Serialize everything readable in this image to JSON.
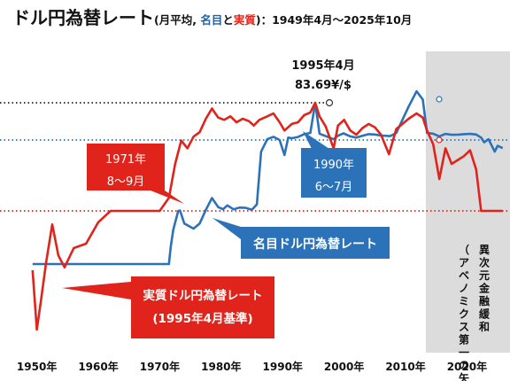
{
  "title": {
    "main": "ドル円為替レート",
    "open_paren": "(月平均, ",
    "nominal_word": "名目",
    "and_word": "と",
    "real_word": "実質",
    "period": ")：1949年4月～2025年10月"
  },
  "chart_data": {
    "type": "line",
    "x_range": [
      1944,
      2027
    ],
    "x_tick_labels": [
      "1950年",
      "1960年",
      "1970年",
      "1980年",
      "1990年",
      "2000年",
      "2010年",
      "2020年"
    ],
    "x_ticks": [
      1950,
      1960,
      1970,
      1980,
      1990,
      2000,
      2010,
      2020
    ],
    "y_inverted": true,
    "grid": false,
    "series": [
      {
        "name": "名目ドル円為替レート",
        "color": "#2b72b8",
        "points": [
          [
            1949.3,
            360
          ],
          [
            1952,
            360
          ],
          [
            1955,
            360
          ],
          [
            1958,
            360
          ],
          [
            1961,
            360
          ],
          [
            1964,
            360
          ],
          [
            1967,
            360
          ],
          [
            1971.5,
            360
          ],
          [
            1971.8,
            330
          ],
          [
            1972.2,
            302
          ],
          [
            1973.0,
            265
          ],
          [
            1973.3,
            262
          ],
          [
            1974.0,
            290
          ],
          [
            1975.5,
            300
          ],
          [
            1976.5,
            290
          ],
          [
            1977.5,
            255
          ],
          [
            1978.5,
            195
          ],
          [
            1979.5,
            230
          ],
          [
            1980.3,
            250
          ],
          [
            1981.0,
            215
          ],
          [
            1982.0,
            250
          ],
          [
            1983,
            235
          ],
          [
            1984,
            237
          ],
          [
            1985.0,
            255
          ],
          [
            1985.8,
            205
          ],
          [
            1986.5,
            155
          ],
          [
            1987.5,
            140
          ],
          [
            1988.5,
            125
          ],
          [
            1989.5,
            145
          ],
          [
            1990.3,
            158
          ],
          [
            1990.9,
            130
          ],
          [
            1991.5,
            134
          ],
          [
            1992.5,
            126
          ],
          [
            1993.5,
            108
          ],
          [
            1994.5,
            100
          ],
          [
            1995.3,
            84
          ],
          [
            1996.0,
            105
          ],
          [
            1997.0,
            120
          ],
          [
            1998.3,
            140
          ],
          [
            1999.0,
            118
          ],
          [
            1999.9,
            103
          ],
          [
            2001.0,
            122
          ],
          [
            2002.0,
            130
          ],
          [
            2003.0,
            118
          ],
          [
            2004.0,
            108
          ],
          [
            2005.0,
            110
          ],
          [
            2006.0,
            117
          ],
          [
            2007.5,
            120
          ],
          [
            2008.5,
            100
          ],
          [
            2009.5,
            93
          ],
          [
            2010.5,
            86
          ],
          [
            2011.8,
            77
          ],
          [
            2012.8,
            82
          ],
          [
            2013.5,
            100
          ],
          [
            2014.5,
            105
          ],
          [
            2015.5,
            122
          ],
          [
            2016.5,
            106
          ],
          [
            2017.5,
            112
          ],
          [
            2018.5,
            111
          ],
          [
            2019.5,
            108
          ],
          [
            2020.5,
            106
          ],
          [
            2021.5,
            110
          ],
          [
            2022.3,
            130
          ],
          [
            2022.8,
            147
          ],
          [
            2023.5,
            140
          ],
          [
            2024.5,
            155
          ],
          [
            2025.0,
            150
          ],
          [
            2025.8,
            152
          ]
        ]
      },
      {
        "name": "実質ドル円為替レート",
        "color": "#e0231b",
        "points": [
          [
            1949.3,
            230
          ],
          [
            1950.0,
            330
          ],
          [
            1950.7,
            245
          ],
          [
            1951.5,
            225
          ],
          [
            1952.5,
            198
          ],
          [
            1953.5,
            220
          ],
          [
            1954.5,
            228
          ],
          [
            1956,
            215
          ],
          [
            1958,
            212
          ],
          [
            1960,
            195
          ],
          [
            1962,
            175
          ],
          [
            1964,
            158
          ],
          [
            1966,
            145
          ],
          [
            1968,
            132
          ],
          [
            1970,
            125
          ],
          [
            1971.5,
            118
          ],
          [
            1972.5,
            100
          ],
          [
            1973.5,
            88
          ],
          [
            1974.5,
            92
          ],
          [
            1975.5,
            86
          ],
          [
            1976.5,
            82
          ],
          [
            1977.5,
            64
          ],
          [
            1978.5,
            50
          ],
          [
            1979.5,
            62
          ],
          [
            1980.5,
            66
          ],
          [
            1981.5,
            60
          ],
          [
            1982.5,
            70
          ],
          [
            1983.5,
            64
          ],
          [
            1984.5,
            68
          ],
          [
            1985.3,
            74
          ],
          [
            1986.2,
            66
          ],
          [
            1987.5,
            60
          ],
          [
            1988.5,
            55
          ],
          [
            1989.5,
            70
          ],
          [
            1990.3,
            80
          ],
          [
            1991.5,
            72
          ],
          [
            1992.5,
            70
          ],
          [
            1993.5,
            58
          ],
          [
            1994.5,
            54
          ],
          [
            1995.3,
            44
          ],
          [
            1996.0,
            60
          ],
          [
            1997.0,
            75
          ],
          [
            1998.3,
            92
          ],
          [
            1999.0,
            74
          ],
          [
            2000.0,
            66
          ],
          [
            2001.0,
            80
          ],
          [
            2002.0,
            85
          ],
          [
            2003.0,
            77
          ],
          [
            2004.0,
            72
          ],
          [
            2005.0,
            76
          ],
          [
            2006.0,
            85
          ],
          [
            2007.3,
            95
          ],
          [
            2008.5,
            78
          ],
          [
            2009.5,
            72
          ],
          [
            2010.5,
            64
          ],
          [
            2011.8,
            55
          ],
          [
            2012.8,
            62
          ],
          [
            2013.5,
            80
          ],
          [
            2014.5,
            90
          ],
          [
            2015.5,
            108
          ],
          [
            2016.5,
            92
          ],
          [
            2017.5,
            100
          ],
          [
            2018.5,
            98
          ],
          [
            2019.5,
            96
          ],
          [
            2020.5,
            93
          ],
          [
            2021.5,
            103
          ],
          [
            2022.3,
            125
          ],
          [
            2022.8,
            140
          ],
          [
            2023.5,
            135
          ],
          [
            2024.5,
            160
          ],
          [
            2025.8,
            180
          ]
        ]
      }
    ],
    "reference_lines": [
      {
        "style": "dotted",
        "color": "#222222",
        "value": 84
      },
      {
        "style": "dotted",
        "color": "#2b72b8",
        "value": 145
      },
      {
        "style": "dotted",
        "color": "#e0231b",
        "value": 265
      }
    ],
    "shaded_region": {
      "from": 2013.3,
      "to": 2027,
      "color": "#dcdcdc",
      "label": "異次元金融緩和\n（アベノミクス第一の矢）"
    },
    "annotations": [
      {
        "label_lines": [
          "1995年4月",
          "83.69¥/$"
        ]
      },
      {
        "label_lines": [
          "1971年",
          "8～9月"
        ]
      },
      {
        "label_lines": [
          "1990年",
          "6～7月"
        ]
      },
      {
        "label_lines": [
          "名目ドル円為替レート"
        ]
      },
      {
        "label_lines": [
          "実質ドル円為替レート",
          "(1995年4月基準)"
        ]
      }
    ]
  }
}
